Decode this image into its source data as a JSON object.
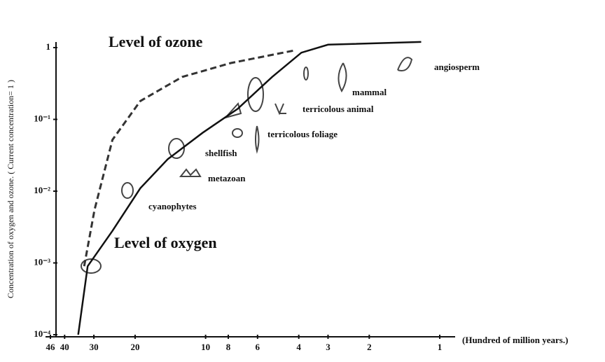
{
  "chart_data": {
    "type": "line",
    "ylabel": "Concentration of oxygen and ozone. ( Current concentration= 1 )",
    "xlabel": "(Hundred of million years.)",
    "xscale": "log",
    "yscale": "log",
    "xlim": [
      46,
      1
    ],
    "ylim": [
      0.0001,
      1
    ],
    "xticks": [
      46,
      40,
      30,
      20,
      10,
      8,
      6,
      4,
      3,
      2,
      1
    ],
    "yticks": [
      {
        "value": 0.0001,
        "label": "10⁻⁴"
      },
      {
        "value": 0.001,
        "label": "10⁻³"
      },
      {
        "value": 0.01,
        "label": "10⁻²"
      },
      {
        "value": 0.1,
        "label": "10⁻¹"
      },
      1
    ],
    "series": [
      {
        "name": "Level of ozone",
        "color": "#333333",
        "dashed": true,
        "x": [
          33,
          29.8,
          25,
          19,
          12.6,
          7.8,
          4.2
        ],
        "values": [
          0.0009,
          0.0055,
          0.052,
          0.18,
          0.39,
          0.61,
          0.91
        ]
      },
      {
        "name": "Level of oxygen",
        "color": "#111111",
        "dashed": false,
        "x": [
          35,
          31.9,
          25,
          19,
          14.5,
          10.3,
          7.3,
          5.2,
          3.9,
          3,
          1.2
        ],
        "values": [
          0.0001,
          0.0009,
          0.0028,
          0.011,
          0.028,
          0.065,
          0.14,
          0.39,
          0.85,
          1.1,
          1.2
        ]
      }
    ],
    "annotations": [
      "angiosperm",
      "mammal",
      "terricolous animal",
      "terricolous foliage",
      "shellfish",
      "metazoan",
      "cyanophytes"
    ]
  }
}
